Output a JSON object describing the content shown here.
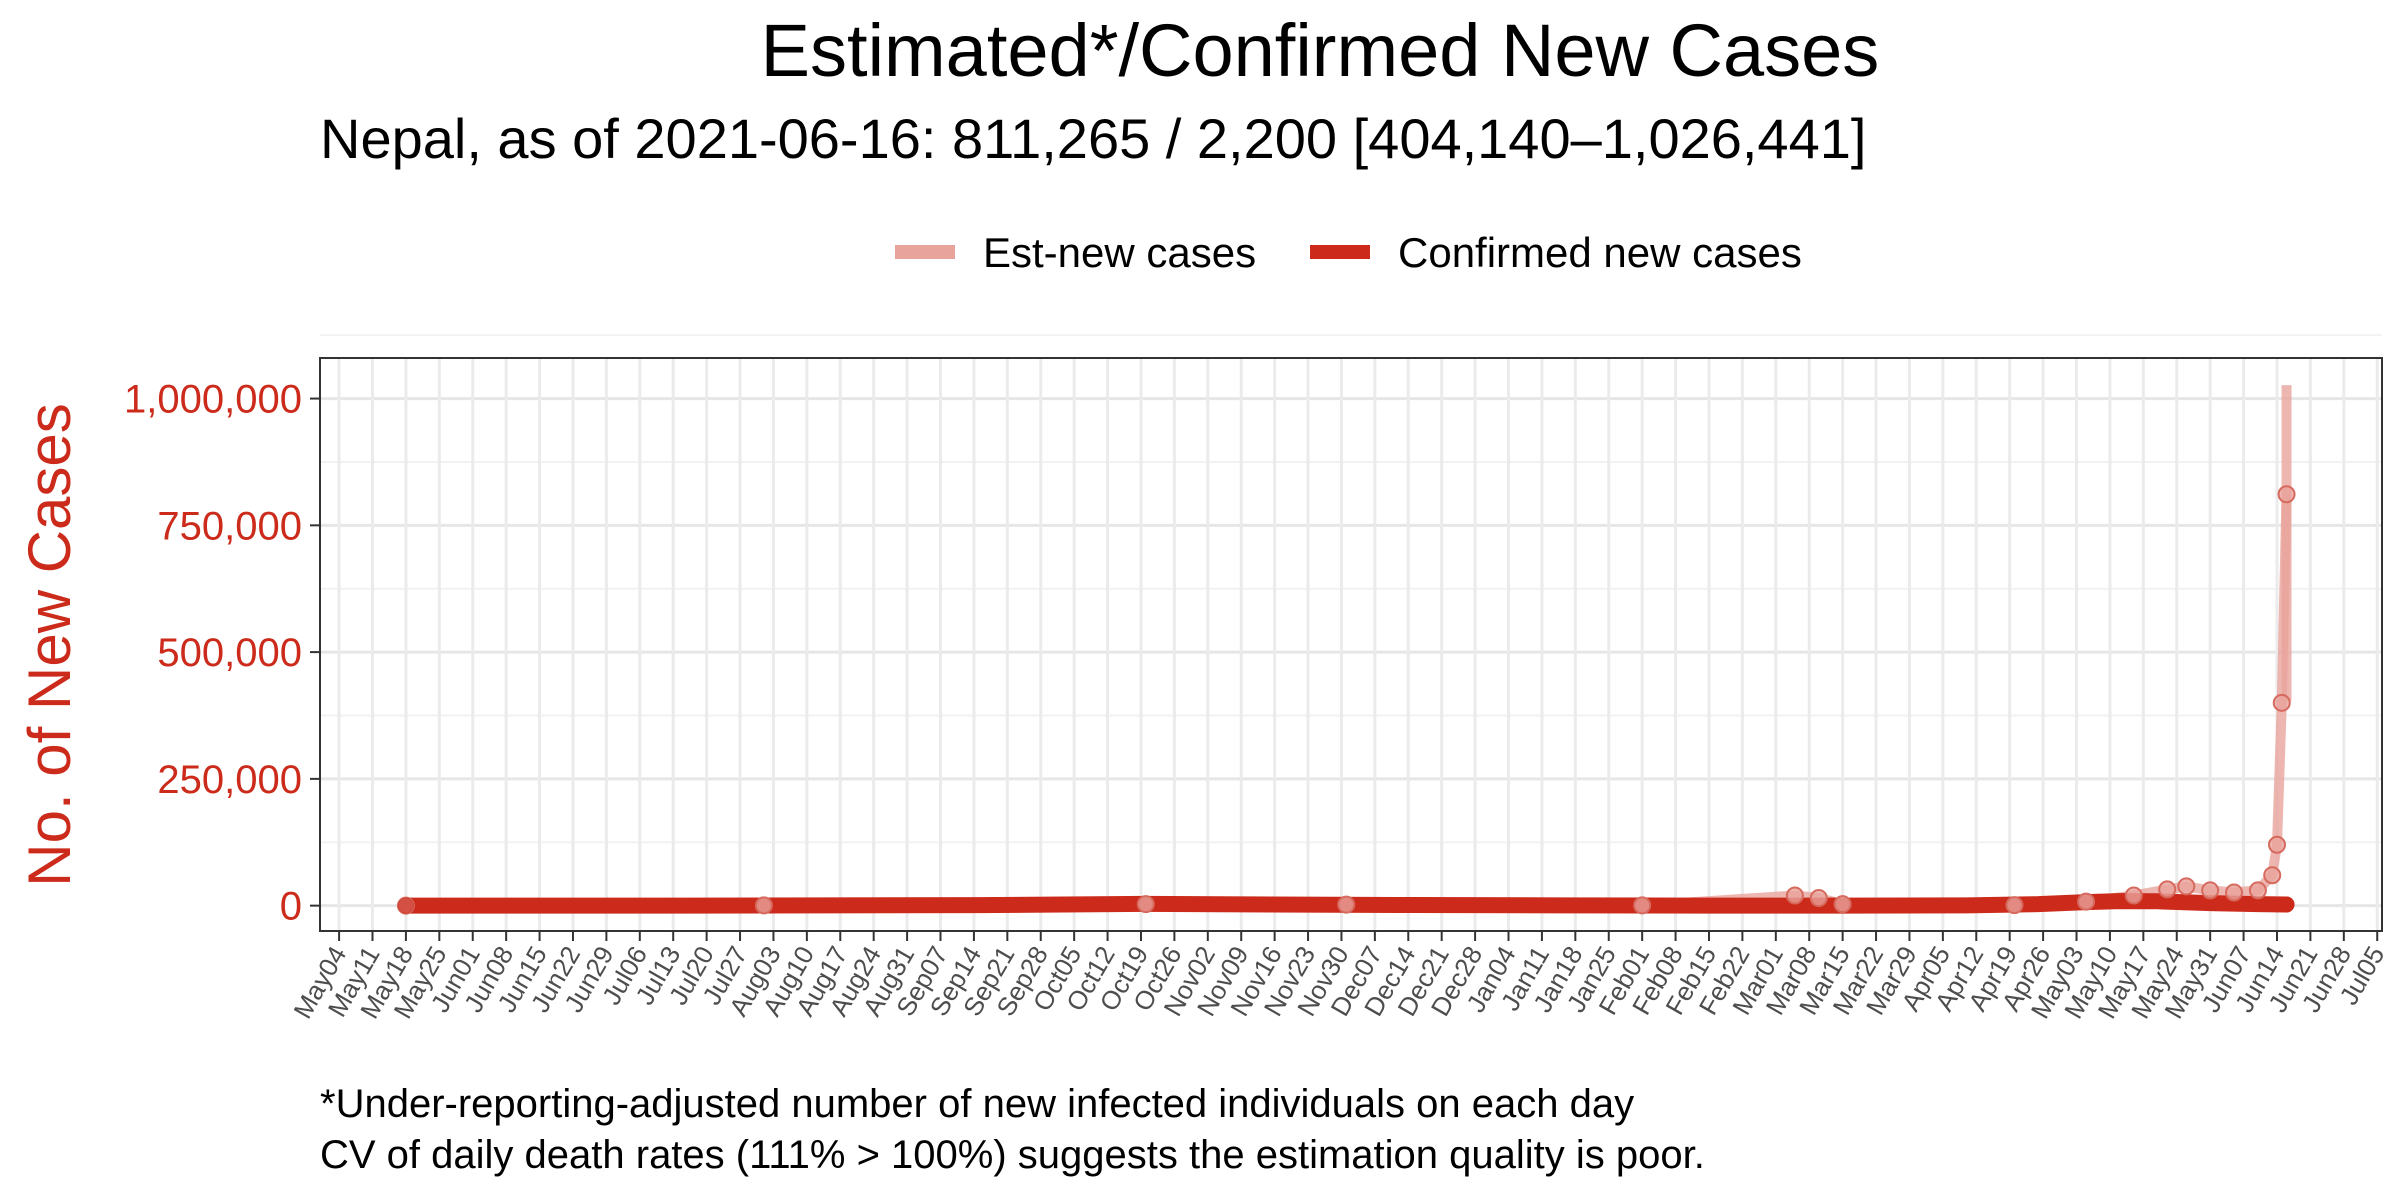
{
  "chart_data": {
    "type": "line",
    "title": "Estimated*/Confirmed New Cases",
    "subtitle": "Nepal, as of 2021-06-16: 811,265 / 2,200 [404,140–1,026,441]",
    "ylabel": "No. of New Cases",
    "xlabel": "",
    "ylim": [
      -50000,
      1080000
    ],
    "yticks": [
      0,
      250000,
      500000,
      750000,
      1000000
    ],
    "ytick_labels": [
      "0",
      "250,000",
      "500,000",
      "750,000",
      "1,000,000"
    ],
    "x_start": "2020-04-30",
    "x_end": "2021-07-06",
    "xtick_dates": [
      "2020-05-04",
      "2020-05-11",
      "2020-05-18",
      "2020-05-25",
      "2020-06-01",
      "2020-06-08",
      "2020-06-15",
      "2020-06-22",
      "2020-06-29",
      "2020-07-06",
      "2020-07-13",
      "2020-07-20",
      "2020-07-27",
      "2020-08-03",
      "2020-08-10",
      "2020-08-17",
      "2020-08-24",
      "2020-08-31",
      "2020-09-07",
      "2020-09-14",
      "2020-09-21",
      "2020-09-28",
      "2020-10-05",
      "2020-10-12",
      "2020-10-19",
      "2020-10-26",
      "2020-11-02",
      "2020-11-09",
      "2020-11-16",
      "2020-11-23",
      "2020-11-30",
      "2020-12-07",
      "2020-12-14",
      "2020-12-21",
      "2020-12-28",
      "2021-01-04",
      "2021-01-11",
      "2021-01-18",
      "2021-01-25",
      "2021-02-01",
      "2021-02-08",
      "2021-02-15",
      "2021-02-22",
      "2021-03-01",
      "2021-03-08",
      "2021-03-15",
      "2021-03-22",
      "2021-03-29",
      "2021-04-05",
      "2021-04-12",
      "2021-04-19",
      "2021-04-26",
      "2021-05-03",
      "2021-05-10",
      "2021-05-17",
      "2021-05-24",
      "2021-05-31",
      "2021-06-07",
      "2021-06-14",
      "2021-06-21",
      "2021-06-28",
      "2021-07-05"
    ],
    "xtick_labels": [
      "May04",
      "May11",
      "May18",
      "May25",
      "Jun01",
      "Jun08",
      "Jun15",
      "Jun22",
      "Jun29",
      "Jul06",
      "Jul13",
      "Jul20",
      "Jul27",
      "Aug03",
      "Aug10",
      "Aug17",
      "Aug24",
      "Aug31",
      "Sep07",
      "Sep14",
      "Sep21",
      "Sep28",
      "Oct05",
      "Oct12",
      "Oct19",
      "Oct26",
      "Nov02",
      "Nov09",
      "Nov16",
      "Nov23",
      "Nov30",
      "Dec07",
      "Dec14",
      "Dec21",
      "Dec28",
      "Jan04",
      "Jan11",
      "Jan18",
      "Jan25",
      "Feb01",
      "Feb08",
      "Feb15",
      "Feb22",
      "Mar01",
      "Mar08",
      "Mar15",
      "Mar22",
      "Mar29",
      "Apr05",
      "Apr12",
      "Apr19",
      "Apr26",
      "May03",
      "May10",
      "May17",
      "May24",
      "May31",
      "Jun07",
      "Jun14",
      "Jun21",
      "Jun28",
      "Jul05"
    ],
    "series": [
      {
        "name": "Est-new cases",
        "color": "#e8a49c",
        "points": [
          [
            "2020-05-18",
            0
          ],
          [
            "2020-08-01",
            500
          ],
          [
            "2020-10-20",
            3000
          ],
          [
            "2020-12-01",
            2000
          ],
          [
            "2021-02-01",
            500
          ],
          [
            "2021-03-05",
            20000
          ],
          [
            "2021-03-10",
            15000
          ],
          [
            "2021-03-15",
            3000
          ],
          [
            "2021-04-20",
            1000
          ],
          [
            "2021-05-05",
            8000
          ],
          [
            "2021-05-15",
            20000
          ],
          [
            "2021-05-22",
            32000
          ],
          [
            "2021-05-26",
            38000
          ],
          [
            "2021-05-31",
            30000
          ],
          [
            "2021-06-05",
            26000
          ],
          [
            "2021-06-10",
            30000
          ],
          [
            "2021-06-13",
            60000
          ],
          [
            "2021-06-14",
            120000
          ],
          [
            "2021-06-15",
            400000
          ],
          [
            "2021-06-16",
            811265
          ]
        ],
        "band_lower_last": 404140,
        "band_upper_last": 1026441
      },
      {
        "name": "Confirmed new cases",
        "color": "#cc2a1a",
        "points": [
          [
            "2020-05-18",
            10
          ],
          [
            "2020-07-15",
            100
          ],
          [
            "2020-09-15",
            1000
          ],
          [
            "2020-10-20",
            3500
          ],
          [
            "2020-11-10",
            2500
          ],
          [
            "2020-12-15",
            1200
          ],
          [
            "2021-01-15",
            500
          ],
          [
            "2021-02-15",
            150
          ],
          [
            "2021-03-15",
            100
          ],
          [
            "2021-04-10",
            500
          ],
          [
            "2021-04-25",
            3000
          ],
          [
            "2021-05-05",
            7000
          ],
          [
            "2021-05-12",
            9000
          ],
          [
            "2021-05-20",
            8500
          ],
          [
            "2021-05-31",
            5000
          ],
          [
            "2021-06-10",
            3000
          ],
          [
            "2021-06-16",
            2200
          ]
        ]
      }
    ],
    "legend": {
      "position": "top",
      "labels": [
        "Est-new cases",
        "Confirmed new cases"
      ]
    },
    "grid": true,
    "footnotes": [
      "*Under-reporting-adjusted number of new infected individuals on each day",
      "CV of daily death rates (111% > 100%) suggests the estimation quality is poor."
    ]
  }
}
